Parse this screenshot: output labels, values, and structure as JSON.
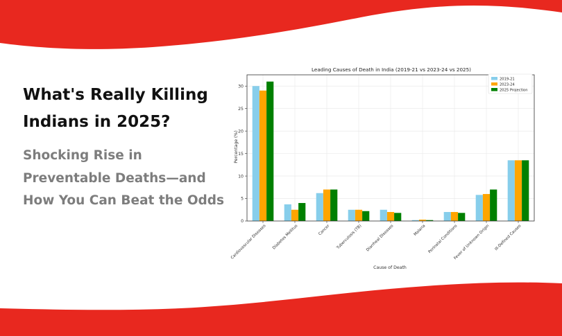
{
  "hero": {
    "headline": "What's Really Killing Indians in 2025?",
    "subhead": "Shocking Rise in Preventable Deaths—and How You Can Beat the Odds"
  },
  "theme": {
    "accent": "#e8281f",
    "series_colors": [
      "#87ceeb",
      "#ffa500",
      "#008000"
    ]
  },
  "chart_data": {
    "type": "bar",
    "title": "Leading Causes of Death in India (2019-21 vs 2023-24 vs 2025)",
    "xlabel": "Cause of Death",
    "ylabel": "Percentage (%)",
    "ylim": [
      0,
      32.5
    ],
    "yticks": [
      0,
      5,
      10,
      15,
      20,
      25,
      30
    ],
    "grid": true,
    "legend_position": "top-right",
    "categories": [
      "Cardiovascular Diseases",
      "Diabetes Mellitus",
      "Cancer",
      "Tuberculosis (TB)",
      "Diarrheal Diseases",
      "Malaria",
      "Perinatal Conditions",
      "Fever of Unknown Origin",
      "Ill-Defined Causes"
    ],
    "series": [
      {
        "name": "2019-21",
        "values": [
          30,
          3.7,
          6.2,
          2.5,
          2.5,
          0.2,
          2.0,
          5.8,
          13.5
        ]
      },
      {
        "name": "2023-24",
        "values": [
          29,
          2.5,
          7.0,
          2.5,
          2.0,
          0.3,
          2.0,
          6.0,
          13.5
        ]
      },
      {
        "name": "2025 Projection",
        "values": [
          31,
          4.0,
          7.0,
          2.2,
          1.8,
          0.2,
          1.8,
          7.0,
          13.5
        ]
      }
    ]
  }
}
